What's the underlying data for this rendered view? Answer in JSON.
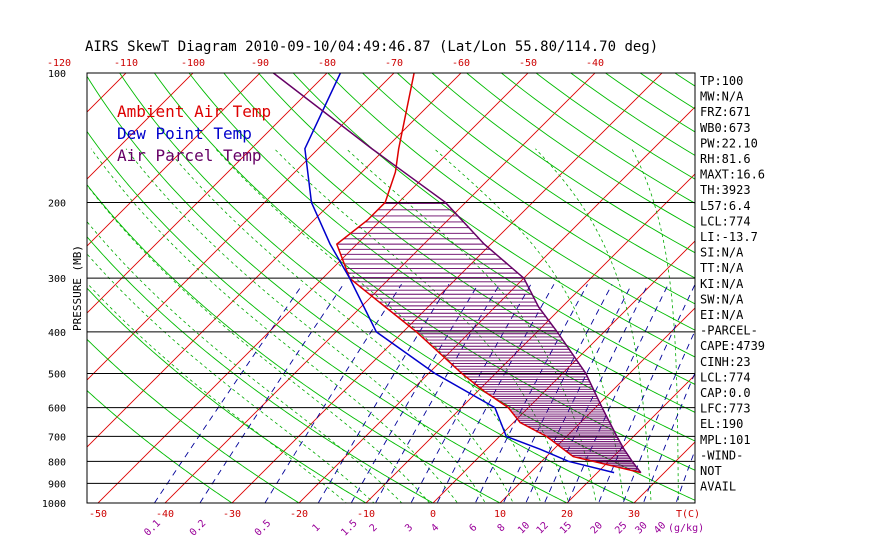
{
  "colors": {
    "frame": "#000000",
    "ambient": "#dd0000",
    "dewpoint": "#0000cc",
    "parcel": "#660066",
    "dry_adiabat": "#00bb00",
    "isotherm": "#dd0000",
    "mixing_ratio": "#000099",
    "moist_adiabat": "#00aa00",
    "hatch": "#660066",
    "top_axis": "#cc0000",
    "bottom_axis": "#cc0000",
    "mixing_label": "#990099"
  },
  "chart_data": {
    "type": "skewt",
    "title": "AIRS SkewT Diagram 2010-09-10/04:49:46.87 (Lat/Lon 55.80/114.70 deg)",
    "ylabel": "PRESSURE (MB)",
    "xlabel": "T(C)",
    "mixing_unit": "(g/kg)",
    "y_scale": "log",
    "ylim": [
      1000,
      100
    ],
    "pressure_ticks": [
      100,
      200,
      300,
      400,
      500,
      600,
      700,
      800,
      900,
      1000
    ],
    "bottom_ticks": [
      -50,
      -40,
      -30,
      -20,
      -10,
      0,
      10,
      20,
      30
    ],
    "top_ticks": [
      -120,
      -110,
      -100,
      -90,
      -80,
      -70,
      -60,
      -50,
      -40
    ],
    "mixing_ratio_labels": [
      "0.1",
      "0.2",
      "0.5",
      "1",
      "1.5",
      "2",
      "3",
      "4",
      "6",
      "8",
      "10",
      "12",
      "15",
      "20",
      "25",
      "30",
      "40"
    ],
    "legend": [
      {
        "name": "Ambient Air Temp",
        "color": "#dd0000"
      },
      {
        "name": "Dew Point Temp",
        "color": "#0000cc"
      },
      {
        "name": "Air Parcel Temp",
        "color": "#660066"
      }
    ],
    "series": [
      {
        "name": "Ambient Air Temp",
        "points": [
          [
            850,
            26.5
          ],
          [
            780,
            14
          ],
          [
            700,
            7
          ],
          [
            650,
            1
          ],
          [
            600,
            -3
          ],
          [
            550,
            -9
          ],
          [
            500,
            -15
          ],
          [
            400,
            -28
          ],
          [
            320,
            -42
          ],
          [
            300,
            -46
          ],
          [
            250,
            -53
          ],
          [
            220,
            -52
          ],
          [
            200,
            -52
          ],
          [
            170,
            -55
          ],
          [
            150,
            -58
          ],
          [
            100,
            -67
          ]
        ]
      },
      {
        "name": "Dew Point Temp",
        "points": [
          [
            850,
            22.5
          ],
          [
            800,
            14
          ],
          [
            750,
            8
          ],
          [
            700,
            1
          ],
          [
            600,
            -5
          ],
          [
            500,
            -19
          ],
          [
            400,
            -34
          ],
          [
            300,
            -46
          ],
          [
            250,
            -54
          ],
          [
            200,
            -63
          ],
          [
            150,
            -72
          ],
          [
            100,
            -78
          ]
        ]
      },
      {
        "name": "Air Parcel Temp",
        "points": [
          [
            850,
            26.5
          ],
          [
            800,
            23.5
          ],
          [
            750,
            20.5
          ],
          [
            700,
            17.5
          ],
          [
            600,
            11
          ],
          [
            500,
            3.5
          ],
          [
            400,
            -7
          ],
          [
            350,
            -13.5
          ],
          [
            300,
            -20
          ],
          [
            250,
            -31
          ],
          [
            200,
            -43
          ],
          [
            150,
            -62
          ],
          [
            100,
            -88
          ]
        ]
      }
    ],
    "indices": [
      "TP:100",
      "MW:N/A",
      "FRZ:671",
      "WB0:673",
      "PW:22.10",
      "RH:81.6",
      "MAXT:16.6",
      "TH:3923",
      "L57:6.4",
      "LCL:774",
      "LI:-13.7",
      "SI:N/A",
      "TT:N/A",
      "KI:N/A",
      "SW:N/A",
      "EI:N/A",
      "-PARCEL-",
      "CAPE:4739",
      "CINH:23",
      "LCL:774",
      "CAP:0.0",
      "LFC:773",
      "EL:190",
      "MPL:101",
      "-WIND-",
      "NOT",
      "AVAIL"
    ]
  }
}
